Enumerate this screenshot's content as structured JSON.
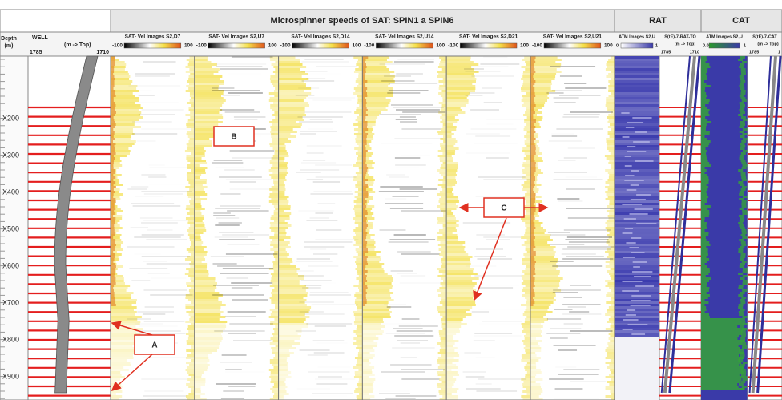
{
  "header": {
    "title": "Microspinner speeds of SAT: SPIN1 a SPIN6",
    "rat": "RAT",
    "cat": "CAT"
  },
  "depth": {
    "title": "Depth",
    "unit": "(m)",
    "labels": [
      "X200",
      "X300",
      "X400",
      "X500",
      "X600",
      "X700",
      "X800",
      "X900"
    ]
  },
  "well": {
    "title": "WELL",
    "subtitle": "(m -> Top)",
    "left": "1785",
    "right": "1710"
  },
  "tracks": [
    {
      "title": "SAT- Vel Images S2,D7",
      "min": "-100",
      "max": "100"
    },
    {
      "title": "SAT- Vel Images S2,U7",
      "min": "-100",
      "max": "100"
    },
    {
      "title": "SAT- Vel Images S2,D14",
      "min": "-100",
      "max": "100"
    },
    {
      "title": "SAT- Vel Images S2,U14",
      "min": "-100",
      "max": "100"
    },
    {
      "title": "SAT- Vel Images S2,D21",
      "min": "-100",
      "max": "100"
    },
    {
      "title": "SAT- Vel Images S2,U21",
      "min": "-100",
      "max": "100"
    }
  ],
  "rat_tracks": [
    {
      "title": "ATM Images S2,U",
      "min": "0",
      "max": "1"
    },
    {
      "title": "S(tE)-7-RAT-TO",
      "subtitle": "(m -> Top)",
      "min": "1785",
      "max": "1710"
    }
  ],
  "cat_tracks": [
    {
      "title": "ATM Images S2,U",
      "min": "0.05",
      "max": "1"
    },
    {
      "title": "S(tE)-7-CAT",
      "subtitle": "(m -> Top)",
      "min": "1785",
      "max": "1"
    }
  ],
  "annotations": [
    "A",
    "B",
    "C"
  ]
}
